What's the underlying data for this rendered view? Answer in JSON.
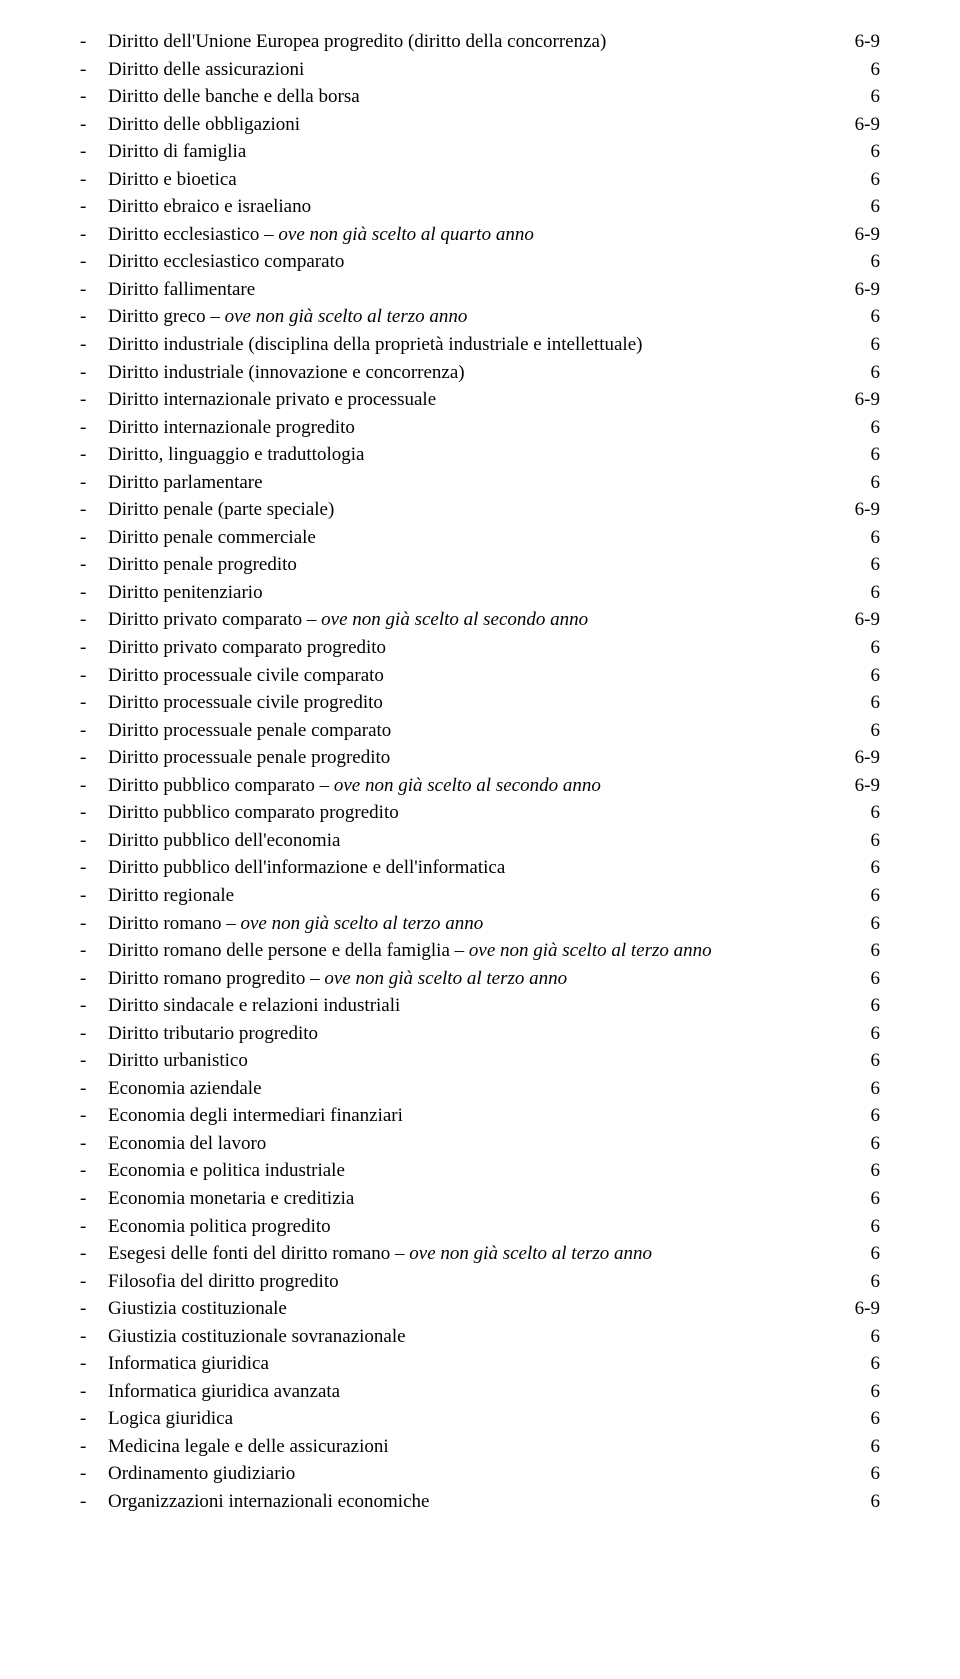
{
  "dash": "-",
  "rows": [
    {
      "pre": "Diritto dell'Unione Europea progredito (diritto della concorrenza)",
      "credits": "6-9"
    },
    {
      "pre": "Diritto delle assicurazioni",
      "credits": "6"
    },
    {
      "pre": "Diritto delle banche e della borsa",
      "credits": "6"
    },
    {
      "pre": "Diritto delle obbligazioni",
      "credits": "6-9"
    },
    {
      "pre": "Diritto di famiglia",
      "credits": "6"
    },
    {
      "pre": "Diritto e bioetica",
      "credits": "6"
    },
    {
      "pre": "Diritto ebraico e israeliano",
      "credits": "6"
    },
    {
      "pre": "Diritto ecclesiastico – ",
      "italic": "ove non già scelto al quarto anno",
      "credits": "6-9"
    },
    {
      "pre": "Diritto ecclesiastico comparato",
      "credits": "6"
    },
    {
      "pre": "Diritto fallimentare",
      "credits": "6-9"
    },
    {
      "pre": "Diritto greco – ",
      "italic": "ove non già scelto al terzo anno",
      "credits": "6"
    },
    {
      "pre": "Diritto industriale (disciplina della proprietà industriale e intellettuale)",
      "credits": "6"
    },
    {
      "pre": "Diritto industriale (innovazione e concorrenza)",
      "credits": "6"
    },
    {
      "pre": "Diritto internazionale privato e processuale",
      "credits": "6-9"
    },
    {
      "pre": "Diritto internazionale progredito",
      "credits": "6"
    },
    {
      "pre": "Diritto, linguaggio e traduttologia",
      "credits": "6"
    },
    {
      "pre": "Diritto parlamentare",
      "credits": "6"
    },
    {
      "pre": "Diritto penale (parte speciale)",
      "credits": "6-9"
    },
    {
      "pre": "Diritto penale commerciale",
      "credits": "6"
    },
    {
      "pre": "Diritto penale progredito",
      "credits": "6"
    },
    {
      "pre": "Diritto penitenziario",
      "credits": "6"
    },
    {
      "pre": "Diritto privato comparato – ",
      "italic": "ove non già scelto al secondo anno",
      "credits": "6-9"
    },
    {
      "pre": "Diritto privato comparato progredito",
      "credits": "6"
    },
    {
      "pre": "Diritto processuale civile comparato",
      "credits": "6"
    },
    {
      "pre": "Diritto processuale civile progredito",
      "credits": "6"
    },
    {
      "pre": "Diritto processuale penale comparato",
      "credits": "6"
    },
    {
      "pre": "Diritto processuale penale progredito",
      "credits": "6-9"
    },
    {
      "pre": "Diritto pubblico comparato – ",
      "italic": "ove non già scelto al secondo anno",
      "credits": "6-9"
    },
    {
      "pre": "Diritto pubblico comparato progredito",
      "credits": "6"
    },
    {
      "pre": "Diritto pubblico dell'economia",
      "credits": "6"
    },
    {
      "pre": "Diritto pubblico dell'informazione e dell'informatica",
      "credits": "6"
    },
    {
      "pre": "Diritto regionale",
      "credits": "6"
    },
    {
      "pre": "Diritto romano – ",
      "italic": "ove non già scelto al terzo anno",
      "credits": "6"
    },
    {
      "pre": "Diritto romano delle persone e della famiglia – ",
      "italic": "ove non già scelto al terzo anno",
      "credits": "6"
    },
    {
      "pre": "Diritto romano progredito – ",
      "italic": "ove non già scelto al terzo anno",
      "credits": "6"
    },
    {
      "pre": "Diritto sindacale e relazioni industriali",
      "credits": "6"
    },
    {
      "pre": "Diritto tributario progredito",
      "credits": "6"
    },
    {
      "pre": "Diritto urbanistico",
      "credits": "6"
    },
    {
      "pre": "Economia aziendale",
      "credits": "6"
    },
    {
      "pre": "Economia degli intermediari finanziari",
      "credits": "6"
    },
    {
      "pre": "Economia del lavoro",
      "credits": "6"
    },
    {
      "pre": "Economia e politica industriale",
      "credits": "6"
    },
    {
      "pre": "Economia monetaria e creditizia",
      "credits": "6"
    },
    {
      "pre": "Economia politica progredito",
      "credits": "6"
    },
    {
      "pre": "Esegesi delle fonti del diritto romano – ",
      "italic": "ove non già scelto al terzo anno",
      "credits": "6"
    },
    {
      "pre": "Filosofia del diritto progredito",
      "credits": "6"
    },
    {
      "pre": "Giustizia costituzionale",
      "credits": "6-9"
    },
    {
      "pre": "Giustizia costituzionale sovranazionale",
      "credits": "6"
    },
    {
      "pre": "Informatica giuridica",
      "credits": "6"
    },
    {
      "pre": "Informatica giuridica avanzata",
      "credits": "6"
    },
    {
      "pre": "Logica giuridica",
      "credits": "6"
    },
    {
      "pre": "Medicina legale e delle assicurazioni",
      "credits": "6"
    },
    {
      "pre": "Ordinamento giudiziario",
      "credits": "6"
    },
    {
      "pre": "Organizzazioni internazionali economiche",
      "credits": "6"
    }
  ]
}
